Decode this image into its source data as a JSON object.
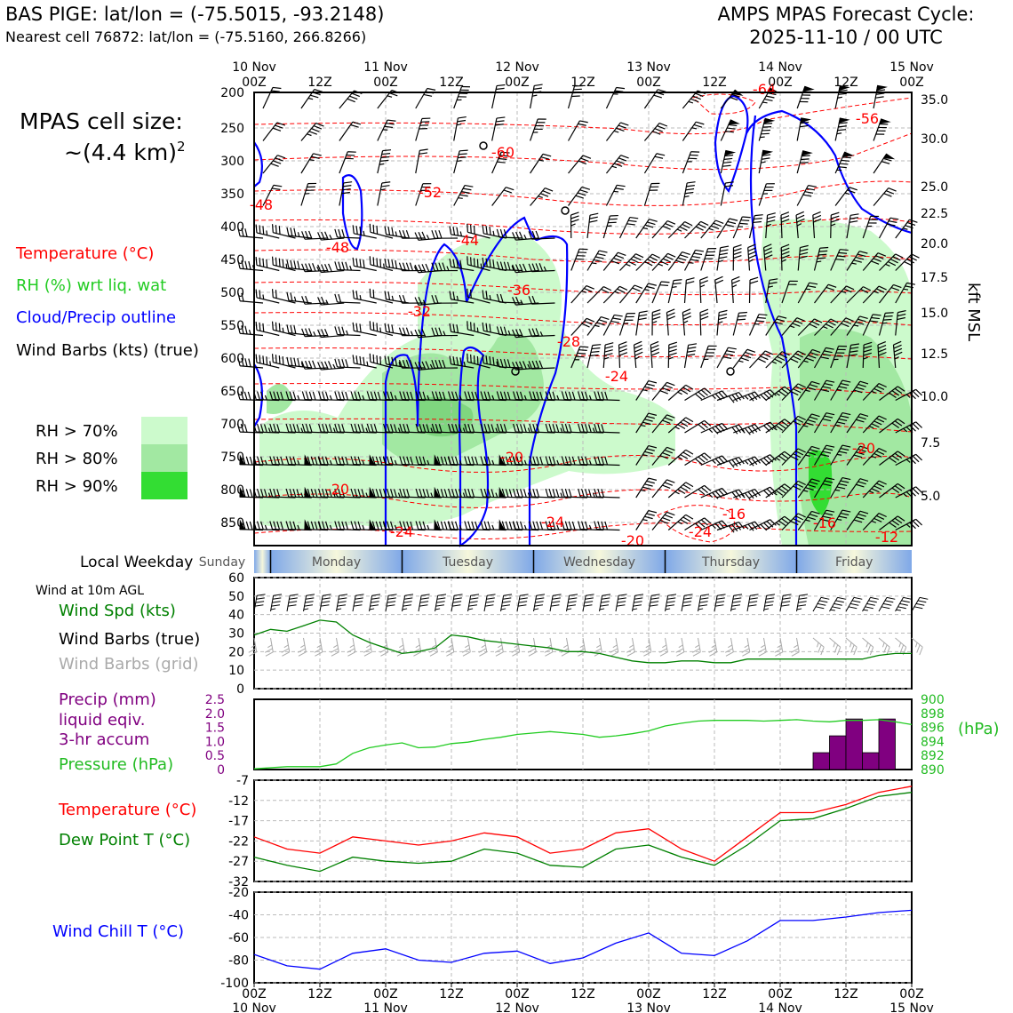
{
  "header": {
    "left_line1": "BAS PIGE: lat/lon = (-75.5015, -93.2148)",
    "left_line2": "Nearest cell 76872: lat/lon = (-75.5160, 266.8266)",
    "right_line1": "AMPS MPAS Forecast Cycle:",
    "right_line2": "2025-11-10 / 00 UTC"
  },
  "cell_size": {
    "line1": "MPAS cell size:",
    "line2": "~(4.4 km)",
    "sup": "2"
  },
  "colors": {
    "temp": "#ff0000",
    "rh": "#22cc22",
    "cloud": "#0000ff",
    "precip": "#800080",
    "dewpoint": "#008000",
    "windchill": "#0000ff",
    "pressure": "#22bb22",
    "rh70": "#ccfacc",
    "rh80": "#a2e8a2",
    "rh90": "#33dd33",
    "grid_barb": "#aaaaaa"
  },
  "time_axis": {
    "top": [
      [
        "10 Nov",
        "00Z"
      ],
      [
        "",
        "12Z"
      ],
      [
        "11 Nov",
        "00Z"
      ],
      [
        "",
        "12Z"
      ],
      [
        "12 Nov",
        "00Z"
      ],
      [
        "",
        "12Z"
      ],
      [
        "13 Nov",
        "00Z"
      ],
      [
        "",
        "12Z"
      ],
      [
        "14 Nov",
        "00Z"
      ],
      [
        "",
        "12Z"
      ],
      [
        "15 Nov",
        "00Z"
      ]
    ],
    "bottom": [
      [
        "00Z",
        "10 Nov"
      ],
      [
        "12Z",
        ""
      ],
      [
        "00Z",
        "11 Nov"
      ],
      [
        "12Z",
        ""
      ],
      [
        "00Z",
        "12 Nov"
      ],
      [
        "12Z",
        ""
      ],
      [
        "00Z",
        "13 Nov"
      ],
      [
        "12Z",
        ""
      ],
      [
        "00Z",
        "14 Nov"
      ],
      [
        "12Z",
        ""
      ],
      [
        "00Z",
        "15 Nov"
      ]
    ]
  },
  "section": {
    "pressure_ticks": [
      "200",
      "250",
      "300",
      "350",
      "400",
      "450",
      "500",
      "550",
      "600",
      "650",
      "700",
      "750",
      "800",
      "850"
    ],
    "kft_ticks": [
      "35.0",
      "30.0",
      "25.0",
      "22.5",
      "20.0",
      "17.5",
      "15.0",
      "12.5",
      "10.0",
      "7.5",
      "5.0"
    ],
    "kft_label": "kft MSL",
    "legend": [
      "Temperature (°C)",
      "RH (%) wrt liq. wat",
      "Cloud/Precip outline",
      "Wind Barbs (kts) (true)"
    ],
    "rh_legend": [
      "RH > 70%",
      "RH > 80%",
      "RH > 90%"
    ],
    "temp_labels": [
      "-60",
      "-56",
      "-52",
      "-48",
      "-48",
      "-44",
      "-36",
      "-32",
      "-28",
      "-24",
      "-20",
      "-20",
      "-24",
      "-24",
      "-20",
      "-16",
      "-16",
      "-12",
      "-20",
      "-24",
      "-64"
    ]
  },
  "weekday": {
    "label": "Local Weekday",
    "days": [
      "Sunday",
      "Monday",
      "Tuesday",
      "Wednesday",
      "Thursday",
      "Friday"
    ]
  },
  "wind_panel": {
    "header": "Wind at 10m AGL",
    "legend": [
      "Wind Spd (kts)",
      "Wind Barbs (true)",
      "Wind Barbs (grid)"
    ],
    "y_ticks": [
      "60",
      "50",
      "40",
      "30",
      "20",
      "10",
      "0"
    ]
  },
  "precip_panel": {
    "legend": [
      "Precip (mm)",
      "liquid eqiv.",
      "3-hr accum",
      "Pressure (hPa)"
    ],
    "y_ticks": [
      "2.5",
      "2.0",
      "1.5",
      "1.0",
      "0.5",
      "0"
    ],
    "p_ticks": [
      "900",
      "898",
      "896",
      "894",
      "892",
      "890"
    ],
    "p_label": "(hPa)"
  },
  "temp_panel": {
    "legend": [
      "Temperature (°C)",
      "Dew Point T (°C)"
    ],
    "y_ticks": [
      "-7",
      "-12",
      "-17",
      "-22",
      "-27",
      "-32"
    ]
  },
  "chill_panel": {
    "legend": "Wind Chill T (°C)",
    "y_ticks": [
      "-20",
      "-40",
      "-60",
      "-80",
      "-100"
    ]
  },
  "chart_data": [
    {
      "type": "line",
      "title": "Wind at 10m AGL",
      "x_unit": "hours since 2025-11-10 00Z",
      "x": [
        0,
        3,
        6,
        9,
        12,
        15,
        18,
        21,
        24,
        27,
        30,
        33,
        36,
        39,
        42,
        45,
        48,
        51,
        54,
        57,
        60,
        63,
        66,
        69,
        72,
        75,
        78,
        81,
        84,
        87,
        90,
        93,
        96,
        99,
        102,
        105,
        108,
        111,
        114,
        117,
        120
      ],
      "series": [
        {
          "name": "Wind Spd (kts)",
          "values": [
            29,
            32,
            31,
            34,
            37,
            36,
            29,
            25,
            22,
            19,
            20,
            22,
            29,
            28,
            26,
            25,
            24,
            23,
            22,
            20,
            20,
            19,
            17,
            15,
            14,
            14,
            15,
            15,
            14,
            14,
            16,
            16,
            16,
            16,
            16,
            16,
            16,
            16,
            18,
            19,
            19
          ]
        }
      ],
      "ylim": [
        0,
        60
      ]
    },
    {
      "type": "bar",
      "title": "Precip (mm) liquid eqiv. 3-hr accum",
      "x": [
        105,
        108,
        111,
        114,
        117
      ],
      "values": [
        0.6,
        1.2,
        1.8,
        0.6,
        1.8
      ],
      "ylim": [
        0,
        2.5
      ],
      "pressure_series": {
        "name": "Pressure (hPa)",
        "x": [
          0,
          6,
          12,
          15,
          18,
          21,
          24,
          27,
          30,
          33,
          36,
          39,
          42,
          45,
          48,
          51,
          54,
          57,
          60,
          63,
          66,
          69,
          72,
          75,
          78,
          81,
          84,
          87,
          90,
          93,
          96,
          99,
          102,
          105,
          108,
          111,
          114,
          117,
          120
        ],
        "values": [
          890.1,
          890.4,
          890.4,
          890.8,
          892.3,
          893.1,
          893.5,
          893.8,
          893.1,
          893.2,
          893.7,
          893.9,
          894.3,
          894.6,
          895.0,
          895.2,
          895.4,
          895.2,
          895.0,
          894.6,
          894.8,
          895.1,
          895.5,
          896.2,
          896.6,
          896.9,
          897.0,
          897.0,
          897.0,
          896.9,
          897.0,
          897.1,
          896.9,
          896.8,
          897.0,
          897.0,
          897.1,
          896.8,
          896.4
        ],
        "ylim": [
          890,
          900
        ]
      }
    },
    {
      "type": "line",
      "title": "Temperature / Dew Point",
      "x": [
        0,
        6,
        12,
        18,
        24,
        30,
        36,
        42,
        48,
        54,
        60,
        66,
        72,
        78,
        84,
        90,
        96,
        102,
        108,
        114,
        120
      ],
      "series": [
        {
          "name": "Temperature (°C)",
          "values": [
            -21,
            -24,
            -25,
            -21,
            -22,
            -23,
            -22,
            -20,
            -21,
            -25,
            -24,
            -20,
            -19,
            -24,
            -27,
            -21,
            -15,
            -15,
            -13,
            -10,
            -8.5
          ]
        },
        {
          "name": "Dew Point T (°C)",
          "values": [
            -26,
            -28,
            -29.5,
            -26,
            -27,
            -27.5,
            -27,
            -24,
            -25,
            -28,
            -28.5,
            -24,
            -23,
            -26,
            -28,
            -23,
            -17,
            -16.5,
            -14,
            -11,
            -10
          ]
        }
      ],
      "ylim": [
        -32,
        -7
      ]
    },
    {
      "type": "line",
      "title": "Wind Chill T (°C)",
      "x": [
        0,
        6,
        12,
        18,
        24,
        30,
        36,
        42,
        48,
        54,
        60,
        66,
        72,
        78,
        84,
        90,
        96,
        102,
        108,
        114,
        120
      ],
      "series": [
        {
          "name": "Wind Chill T (°C)",
          "values": [
            -75,
            -85,
            -88,
            -74,
            -70,
            -80,
            -82,
            -74,
            -72,
            -83,
            -78,
            -65,
            -56,
            -74,
            -76,
            -63,
            -45,
            -45,
            -42,
            -38,
            -36
          ]
        }
      ],
      "ylim": [
        -100,
        -20
      ]
    }
  ]
}
